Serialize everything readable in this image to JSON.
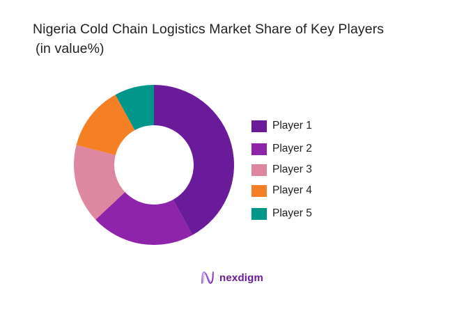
{
  "header": {
    "title": "Nigeria Cold Chain Logistics Market Share of Key Players",
    "subtitle": "(in value%)"
  },
  "legend": {
    "items": [
      {
        "label": "Player 1",
        "color": "#6a1b9a"
      },
      {
        "label": "Player 2",
        "color": "#8e24aa"
      },
      {
        "label": "Player 3",
        "color": "#dd87a1"
      },
      {
        "label": "Player 4",
        "color": "#f47f24"
      },
      {
        "label": "Player 5",
        "color": "#00968a"
      }
    ]
  },
  "footer": {
    "brand": "nexdigm",
    "brand_color": "#6a1b9a"
  },
  "chart_data": {
    "type": "pie",
    "subtype": "donut",
    "title": "Nigeria Cold Chain Logistics Market Share of Key Players (in value%)",
    "categories": [
      "Player 1",
      "Player 2",
      "Player 3",
      "Player 4",
      "Player 5"
    ],
    "values": [
      42,
      21,
      16,
      13,
      8
    ],
    "colors": [
      "#6a1b9a",
      "#8e24aa",
      "#dd87a1",
      "#f47f24",
      "#00968a"
    ],
    "unit": "%",
    "start_angle": "12 o'clock",
    "direction": "clockwise",
    "legend_position": "right",
    "data_labels": false
  }
}
